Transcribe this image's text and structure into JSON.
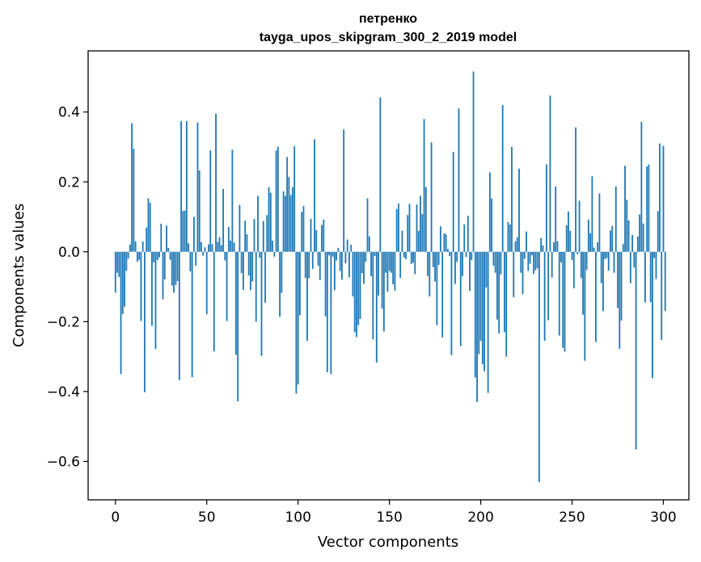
{
  "chart_data": {
    "type": "bar",
    "title_lines": [
      "петренко",
      "tayga_upos_skipgram_300_2_2019 model"
    ],
    "xlabel": "Vector components",
    "ylabel": "Components values",
    "xlim": [
      -14.95,
      313.95
    ],
    "ylim": [
      -0.71,
      0.575
    ],
    "x_ticks": [
      0,
      50,
      100,
      150,
      200,
      250,
      300
    ],
    "x_tick_labels": [
      "0",
      "50",
      "100",
      "150",
      "200",
      "250",
      "300"
    ],
    "y_ticks": [
      -0.6,
      -0.4,
      -0.2,
      0.0,
      0.2,
      0.4
    ],
    "y_tick_labels": [
      "−0.6",
      "−0.4",
      "−0.2",
      "0.0",
      "0.2",
      "0.4"
    ],
    "bar_color": "#1f77b4",
    "grid": false,
    "legend": "none",
    "values": [
      -0.117,
      -0.06,
      -0.072,
      -0.35,
      -0.178,
      -0.157,
      -0.055,
      -0.02,
      0.021,
      0.368,
      0.295,
      0.03,
      -0.028,
      -0.023,
      -0.198,
      0.029,
      -0.402,
      0.069,
      0.153,
      0.14,
      -0.212,
      -0.03,
      -0.278,
      -0.024,
      -0.016,
      0.08,
      -0.136,
      -0.079,
      0.075,
      0.011,
      -0.023,
      -0.097,
      -0.117,
      -0.095,
      -0.084,
      -0.367,
      0.374,
      0.117,
      0.118,
      0.374,
      0.024,
      -0.056,
      -0.359,
      0.1,
      -0.04,
      0.37,
      0.233,
      0.028,
      -0.011,
      0.013,
      -0.179,
      0.021,
      0.29,
      0.022,
      -0.285,
      0.395,
      0.028,
      0.042,
      0.019,
      0.18,
      -0.025,
      -0.198,
      0.071,
      0.032,
      0.292,
      0.026,
      -0.295,
      -0.428,
      0.134,
      -0.061,
      -0.109,
      0.089,
      0.05,
      -0.068,
      -0.11,
      -0.085,
      0.094,
      -0.2,
      0.16,
      -0.017,
      -0.298,
      0.088,
      -0.146,
      0.105,
      0.185,
      0.169,
      0.032,
      -0.014,
      0.29,
      0.301,
      -0.186,
      -0.118,
      0.173,
      0.16,
      0.271,
      0.214,
      0.162,
      0.185,
      0.302,
      -0.406,
      -0.38,
      -0.182,
      0.114,
      0.131,
      -0.075,
      -0.255,
      -0.076,
      0.094,
      -0.049,
      0.322,
      0.062,
      -0.04,
      -0.081,
      0.077,
      0.092,
      -0.185,
      -0.345,
      -0.01,
      -0.35,
      -0.014,
      -0.11,
      -0.025,
      0.011,
      -0.055,
      -0.08,
      0.35,
      -0.033,
      0.035,
      -0.073,
      0.02,
      -0.128,
      -0.23,
      -0.244,
      -0.21,
      -0.192,
      -0.061,
      -0.092,
      -0.029,
      0.153,
      0.044,
      -0.07,
      -0.251,
      -0.012,
      -0.317,
      -0.125,
      0.442,
      -0.163,
      -0.228,
      -0.06,
      -0.114,
      -0.055,
      -0.06,
      -0.093,
      -0.111,
      0.122,
      0.138,
      -0.075,
      0.06,
      -0.016,
      -0.021,
      0.105,
      0.137,
      -0.035,
      -0.031,
      -0.064,
      0.135,
      0.06,
      0.16,
      0.108,
      0.38,
      0.185,
      -0.07,
      -0.128,
      0.313,
      -0.044,
      -0.085,
      -0.21,
      -0.038,
      0.073,
      -0.245,
      0.053,
      0.05,
      0.008,
      -0.012,
      -0.296,
      0.286,
      -0.092,
      -0.029,
      0.41,
      -0.27,
      -0.07,
      0.078,
      -0.015,
      0.103,
      -0.112,
      -0.024,
      0.516,
      -0.36,
      -0.43,
      -0.293,
      -0.255,
      -0.322,
      -0.342,
      -0.102,
      -0.404,
      0.227,
      0.152,
      -0.04,
      -0.06,
      -0.194,
      -0.234,
      -0.065,
      0.42,
      -0.23,
      -0.3,
      0.085,
      0.078,
      0.3,
      -0.13,
      0.03,
      0.042,
      0.238,
      -0.06,
      -0.121,
      -0.02,
      0.058,
      -0.055,
      -0.034,
      -0.01,
      -0.064,
      -0.053,
      -0.047,
      -0.659,
      0.039,
      0.018,
      -0.255,
      0.25,
      -0.196,
      0.447,
      -0.074,
      0.027,
      0.187,
      0.03,
      -0.24,
      -0.03,
      -0.275,
      -0.286,
      0.076,
      0.115,
      0.06,
      -0.023,
      -0.105,
      0.356,
      -0.007,
      0.146,
      -0.075,
      -0.18,
      -0.312,
      -0.052,
      0.092,
      0.053,
      0.216,
      0.012,
      -0.258,
      0.027,
      0.167,
      -0.09,
      -0.17,
      -0.021,
      -0.018,
      -0.054,
      0.061,
      0.074,
      -0.06,
      0.187,
      -0.161,
      -0.278,
      -0.197,
      0.022,
      0.246,
      0.149,
      0.09,
      -0.09,
      0.048,
      -0.045,
      -0.566,
      0.044,
      0.107,
      0.372,
      0.081,
      -0.145,
      0.244,
      0.25,
      -0.144,
      -0.362,
      -0.018,
      -0.078,
      0.116,
      0.31,
      -0.252,
      0.303,
      -0.17
    ]
  }
}
